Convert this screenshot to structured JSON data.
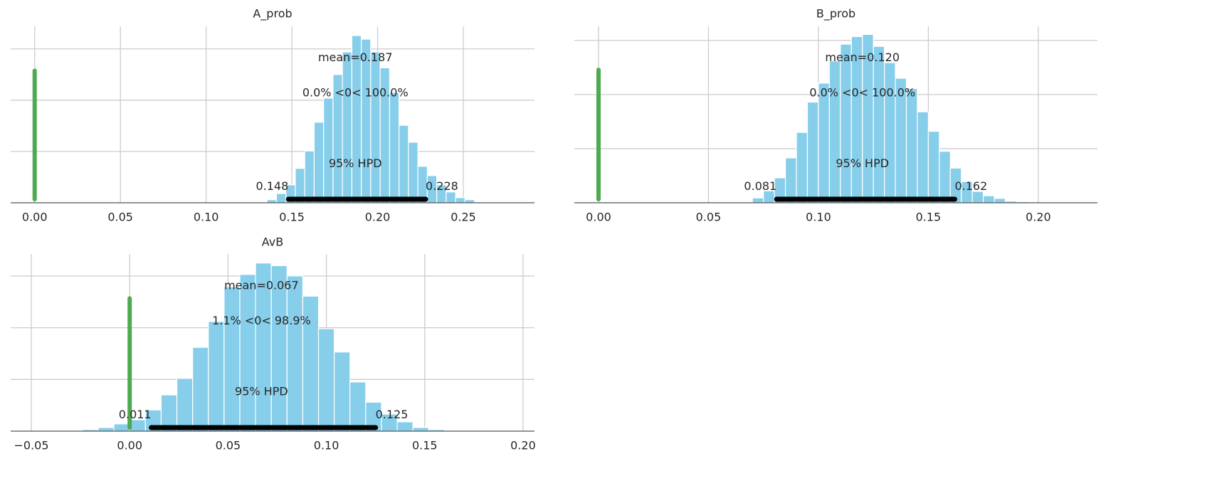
{
  "chart_data": [
    {
      "type": "histogram",
      "title": "A_prob",
      "bins": [
        0.1355,
        0.141,
        0.1465,
        0.152,
        0.1575,
        0.163,
        0.1685,
        0.174,
        0.1795,
        0.185,
        0.1905,
        0.196,
        0.2015,
        0.207,
        0.2125,
        0.218,
        0.2235,
        0.229,
        0.2345,
        0.24,
        0.2455,
        0.251,
        0.2565
      ],
      "values": [
        0.6,
        1.8,
        3.5,
        6.7,
        10.1,
        15.7,
        20.4,
        25,
        29.4,
        32.6,
        31.9,
        29.4,
        26.3,
        21.5,
        15.1,
        11.8,
        7.1,
        5.3,
        3.5,
        2.1,
        1,
        0.6
      ],
      "color": "#87ceeb",
      "xlim": [
        -0.014,
        0.2915
      ],
      "xticks": [
        {
          "value": 0,
          "label": "0.00"
        },
        {
          "value": 0.05,
          "label": "0.05"
        },
        {
          "value": 0.1,
          "label": "0.10"
        },
        {
          "value": 0.15,
          "label": "0.15"
        },
        {
          "value": 0.2,
          "label": "0.20"
        },
        {
          "value": 0.25,
          "label": "0.25"
        }
      ],
      "ylim": [
        0,
        34.4
      ],
      "yticks": [
        10,
        20,
        30
      ],
      "show_ytick_labels": false,
      "grid": true,
      "mean": 0.187,
      "mean_label": "mean=0.187",
      "ref_value": 0,
      "ref_color": "#4daa50",
      "ref_label": "0.0% <0< 100.0%",
      "hpd": [
        0.148,
        0.228
      ],
      "hpd_label": "95% HPD",
      "hpd_color": "#000000"
    },
    {
      "type": "histogram",
      "title": "B_prob",
      "bins": [
        0.07,
        0.075,
        0.08,
        0.085,
        0.09,
        0.095,
        0.1,
        0.105,
        0.11,
        0.115,
        0.12,
        0.125,
        0.13,
        0.135,
        0.14,
        0.145,
        0.15,
        0.155,
        0.16,
        0.165,
        0.17,
        0.175,
        0.18,
        0.185,
        0.19,
        0.195
      ],
      "values": [
        0.9,
        2.2,
        4.6,
        8.3,
        13,
        18.6,
        22.1,
        26.2,
        29.3,
        30.7,
        31.1,
        28.9,
        25.9,
        23,
        21.1,
        16.8,
        13.2,
        9.5,
        6.4,
        3.9,
        2.1,
        1.3,
        0.8,
        0.3,
        0.2
      ],
      "color": "#87ceeb",
      "xlim": [
        -0.011,
        0.2269
      ],
      "xticks": [
        {
          "value": 0,
          "label": "0.00"
        },
        {
          "value": 0.05,
          "label": "0.05"
        },
        {
          "value": 0.1,
          "label": "0.10"
        },
        {
          "value": 0.15,
          "label": "0.15"
        },
        {
          "value": 0.2,
          "label": "0.20"
        }
      ],
      "ylim": [
        0,
        32.6
      ],
      "yticks": [
        10,
        20,
        30
      ],
      "show_ytick_labels": false,
      "grid": true,
      "mean": 0.12,
      "mean_label": "mean=0.120",
      "ref_value": 0,
      "ref_color": "#4daa50",
      "ref_label": "0.0% <0< 100.0%",
      "hpd": [
        0.081,
        0.162
      ],
      "hpd_label": "95% HPD",
      "hpd_color": "#000000"
    },
    {
      "type": "histogram",
      "title": "AvB",
      "bins": [
        -0.024,
        -0.016,
        -0.008,
        0,
        0.008,
        0.016,
        0.024,
        0.032,
        0.04,
        0.048,
        0.056,
        0.064,
        0.072,
        0.08,
        0.088,
        0.096,
        0.104,
        0.112,
        0.12,
        0.128,
        0.136,
        0.144,
        0.152,
        0.16
      ],
      "values": [
        0.3,
        0.7,
        1.4,
        2.2,
        4.1,
        7,
        10.2,
        16.2,
        21.2,
        27.9,
        30.3,
        32.5,
        32,
        30,
        26.1,
        19.8,
        15.3,
        9.5,
        5.6,
        3.3,
        1.8,
        0.7,
        0.3
      ],
      "color": "#87ceeb",
      "xlim": [
        -0.0605,
        0.2058
      ],
      "xticks": [
        {
          "value": -0.05,
          "label": "−0.05"
        },
        {
          "value": 0,
          "label": "0.00"
        },
        {
          "value": 0.05,
          "label": "0.05"
        },
        {
          "value": 0.1,
          "label": "0.10"
        },
        {
          "value": 0.15,
          "label": "0.15"
        },
        {
          "value": 0.2,
          "label": "0.20"
        }
      ],
      "ylim": [
        0,
        34.25
      ],
      "yticks": [
        10,
        20,
        30
      ],
      "show_ytick_labels": false,
      "grid": true,
      "mean": 0.067,
      "mean_label": "mean=0.067",
      "ref_value": 0,
      "ref_color": "#4daa50",
      "ref_label": "1.1% <0< 98.9%",
      "hpd": [
        0.011,
        0.125
      ],
      "hpd_label": "95% HPD",
      "hpd_color": "#000000"
    }
  ]
}
